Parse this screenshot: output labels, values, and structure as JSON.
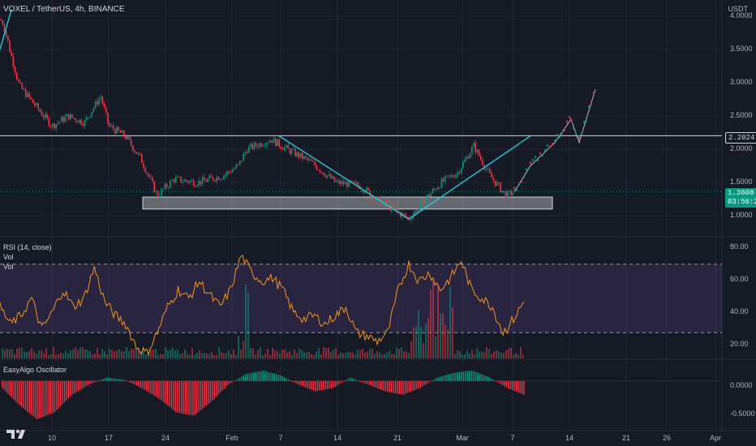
{
  "header": {
    "title": "VOXEL / TetherUS, 4h, BINANCE",
    "currency": "USDT"
  },
  "price_axis": {
    "ticks": [
      "4.0000",
      "3.5000",
      "3.0000",
      "2.5000",
      "2.0000",
      "1.5000",
      "1.0000"
    ],
    "resistance_label": "2.2024",
    "current_price": "1.3608",
    "countdown": "03:56:23"
  },
  "rsi_pane": {
    "label": "RSI (14, close)",
    "vol_label_1": "Vol",
    "vol_label_2": "Vol",
    "ticks": [
      "80.00",
      "60.00",
      "40.00",
      "20.00"
    ]
  },
  "oscillator_pane": {
    "label": "EasyAlgo Oscillator",
    "ticks": [
      "0.0000",
      "-0.5000"
    ]
  },
  "time_axis": {
    "ticks": [
      "10",
      "17",
      "24",
      "Feb",
      "7",
      "14",
      "21",
      "Mar",
      "7",
      "14",
      "21",
      "26",
      "Apr"
    ]
  },
  "colors": {
    "background": "#161a25",
    "up": "#089981",
    "down": "#f23645",
    "rsi_line": "#f7931a",
    "rsi_band": "#7e57c2",
    "trendline": "#26c6da",
    "grid": "#232733"
  },
  "chart_data": [
    {
      "type": "candlestick",
      "title": "VOXEL / TetherUS, 4h, BINANCE",
      "ylim": [
        0.7,
        4.2
      ],
      "x_ticks": [
        "10",
        "17",
        "24",
        "Feb",
        "7",
        "14",
        "21",
        "Mar",
        "7",
        "14",
        "21",
        "26",
        "Apr"
      ],
      "close_path": [
        {
          "date": "Jan 4",
          "price": 3.9
        },
        {
          "date": "Jan 5",
          "price": 3.4
        },
        {
          "date": "Jan 6",
          "price": 2.95
        },
        {
          "date": "Jan 8",
          "price": 2.65
        },
        {
          "date": "Jan 10",
          "price": 2.35
        },
        {
          "date": "Jan 12",
          "price": 2.5
        },
        {
          "date": "Jan 14",
          "price": 2.4
        },
        {
          "date": "Jan 16",
          "price": 2.8
        },
        {
          "date": "Jan 17",
          "price": 2.35
        },
        {
          "date": "Jan 19",
          "price": 2.2
        },
        {
          "date": "Jan 21",
          "price": 1.85
        },
        {
          "date": "Jan 23",
          "price": 1.3
        },
        {
          "date": "Jan 25",
          "price": 1.55
        },
        {
          "date": "Jan 28",
          "price": 1.5
        },
        {
          "date": "Jan 31",
          "price": 1.6
        },
        {
          "date": "Feb 2",
          "price": 1.75
        },
        {
          "date": "Feb 3",
          "price": 2.0
        },
        {
          "date": "Feb 6",
          "price": 2.15
        },
        {
          "date": "Feb 8",
          "price": 2.0
        },
        {
          "date": "Feb 11",
          "price": 1.8
        },
        {
          "date": "Feb 14",
          "price": 1.5
        },
        {
          "date": "Feb 17",
          "price": 1.45
        },
        {
          "date": "Feb 19",
          "price": 1.25
        },
        {
          "date": "Feb 21",
          "price": 1.1
        },
        {
          "date": "Feb 23",
          "price": 0.95
        },
        {
          "date": "Feb 25",
          "price": 1.25
        },
        {
          "date": "Feb 27",
          "price": 1.5
        },
        {
          "date": "Mar 1",
          "price": 1.65
        },
        {
          "date": "Mar 3",
          "price": 2.05
        },
        {
          "date": "Mar 5",
          "price": 1.6
        },
        {
          "date": "Mar 7",
          "price": 1.3
        },
        {
          "date": "Mar 8",
          "price": 1.36
        }
      ],
      "projection_path": [
        {
          "date": "Mar 8",
          "price": 1.36
        },
        {
          "date": "Mar 10",
          "price": 1.75
        },
        {
          "date": "Mar 13",
          "price": 2.1
        },
        {
          "date": "Mar 15",
          "price": 2.45
        },
        {
          "date": "Mar 16",
          "price": 2.1
        },
        {
          "date": "Mar 18",
          "price": 2.9
        }
      ],
      "horizontal_line": 2.2024,
      "support_zone": [
        1.1,
        1.28
      ],
      "trendlines": [
        {
          "from": {
            "date": "Feb 7",
            "price": 2.2
          },
          "to": {
            "date": "Feb 23",
            "price": 0.95
          }
        },
        {
          "from": {
            "date": "Feb 23",
            "price": 0.95
          },
          "to": {
            "date": "Mar 10",
            "price": 2.2
          }
        }
      ],
      "last_price": 1.3608
    },
    {
      "type": "line",
      "title": "RSI (14, close)",
      "ylim": [
        15,
        85
      ],
      "bands": [
        30,
        70
      ],
      "values": [
        45,
        35,
        40,
        50,
        32,
        42,
        55,
        45,
        50,
        68,
        48,
        40,
        35,
        22,
        18,
        30,
        45,
        55,
        50,
        60,
        52,
        45,
        55,
        75,
        65,
        60,
        62,
        55,
        42,
        38,
        40,
        35,
        40,
        45,
        30,
        28,
        25,
        30,
        55,
        70,
        60,
        65,
        55,
        62,
        72,
        55,
        50,
        45,
        30,
        38,
        48
      ]
    },
    {
      "type": "bar",
      "title": "EasyAlgo Oscillator",
      "ylim": [
        -0.7,
        0.3
      ],
      "values": [
        -0.1,
        -0.35,
        -0.55,
        -0.45,
        -0.2,
        -0.05,
        0.05,
        0.02,
        -0.1,
        -0.25,
        -0.45,
        -0.5,
        -0.3,
        -0.05,
        0.1,
        0.15,
        0.08,
        -0.05,
        -0.15,
        -0.1,
        0.05,
        -0.05,
        -0.15,
        -0.2,
        -0.1,
        0.05,
        0.12,
        0.15,
        0.05,
        -0.1,
        -0.2
      ]
    }
  ]
}
